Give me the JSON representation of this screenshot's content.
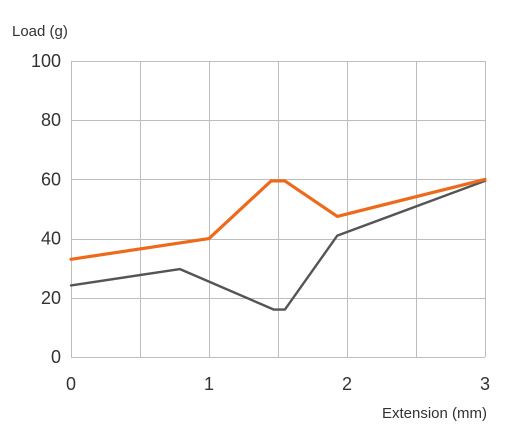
{
  "chart_data": {
    "type": "line",
    "ylabel": "Load (g)",
    "xlabel": "Extension (mm)",
    "xlim": [
      0,
      3
    ],
    "ylim": [
      0,
      100
    ],
    "x_ticks": [
      0,
      1,
      2,
      3
    ],
    "x_tick_labels": [
      "0",
      "1",
      "2",
      "3"
    ],
    "y_ticks": [
      0,
      20,
      40,
      60,
      80,
      100
    ],
    "y_tick_labels": [
      "0",
      "20",
      "40",
      "60",
      "80",
      "100"
    ],
    "x_grid_lines": [
      0,
      0.5,
      1,
      1.5,
      2,
      2.5,
      3
    ],
    "grid": true,
    "legend": false,
    "series": [
      {
        "color": "#ee6a1b",
        "points": [
          [
            0,
            33
          ],
          [
            1,
            40
          ],
          [
            1.45,
            59.5
          ],
          [
            1.55,
            59.5
          ],
          [
            1.93,
            47.5
          ],
          [
            3,
            60
          ]
        ]
      },
      {
        "color": "#555555",
        "points": [
          [
            0,
            24.2
          ],
          [
            0.79,
            29.7
          ],
          [
            1.47,
            16
          ],
          [
            1.55,
            16
          ],
          [
            1.93,
            41
          ],
          [
            3,
            59.5
          ]
        ]
      }
    ]
  }
}
